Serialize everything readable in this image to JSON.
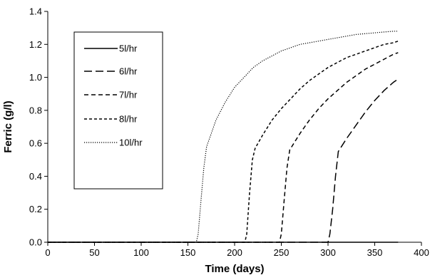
{
  "chart_data": {
    "type": "line",
    "title": "",
    "xlabel": "Time (days)",
    "ylabel": "Ferric (g/l)",
    "xlim": [
      0,
      400
    ],
    "ylim": [
      0,
      1.4
    ],
    "x_ticks": [
      "0",
      "50",
      "100",
      "150",
      "200",
      "250",
      "300",
      "350",
      "400"
    ],
    "y_ticks": [
      "0.0",
      "0.2",
      "0.4",
      "0.6",
      "0.8",
      "1.0",
      "1.2",
      "1.4"
    ],
    "grid": false,
    "legend_position": "top-left",
    "series": [
      {
        "name": "5l/hr",
        "style": "solid",
        "x": [
          0,
          100,
          200,
          300,
          375
        ],
        "y": [
          0,
          0,
          0,
          0,
          0
        ]
      },
      {
        "name": "6l/hr",
        "style": "long-dash",
        "x": [
          0,
          300,
          302,
          305,
          308,
          311,
          320,
          330,
          340,
          350,
          360,
          370,
          375
        ],
        "y": [
          0,
          0,
          0.05,
          0.2,
          0.4,
          0.55,
          0.63,
          0.71,
          0.79,
          0.86,
          0.92,
          0.97,
          0.99
        ]
      },
      {
        "name": "7l/hr",
        "style": "dash",
        "x": [
          0,
          248,
          250,
          253,
          256,
          259,
          270,
          280,
          290,
          300,
          310,
          320,
          330,
          340,
          350,
          360,
          370,
          375
        ],
        "y": [
          0,
          0,
          0.05,
          0.25,
          0.45,
          0.56,
          0.66,
          0.74,
          0.81,
          0.87,
          0.92,
          0.97,
          1.01,
          1.05,
          1.08,
          1.11,
          1.14,
          1.15
        ]
      },
      {
        "name": "8l/hr",
        "style": "short-dash",
        "x": [
          0,
          211,
          213,
          216,
          219,
          222,
          230,
          240,
          250,
          260,
          270,
          280,
          290,
          300,
          310,
          320,
          330,
          340,
          350,
          360,
          370,
          375
        ],
        "y": [
          0,
          0,
          0.05,
          0.3,
          0.5,
          0.57,
          0.65,
          0.74,
          0.81,
          0.87,
          0.93,
          0.98,
          1.02,
          1.06,
          1.09,
          1.12,
          1.14,
          1.16,
          1.18,
          1.2,
          1.21,
          1.22
        ]
      },
      {
        "name": "10l/hr",
        "style": "dotted",
        "x": [
          0,
          159,
          161,
          164,
          167,
          170,
          175,
          180,
          190,
          200,
          210,
          220,
          230,
          240,
          250,
          260,
          270,
          280,
          290,
          300,
          310,
          320,
          330,
          340,
          350,
          360,
          370,
          375
        ],
        "y": [
          0,
          0,
          0.05,
          0.25,
          0.45,
          0.58,
          0.66,
          0.74,
          0.85,
          0.94,
          1.0,
          1.06,
          1.1,
          1.13,
          1.16,
          1.18,
          1.2,
          1.21,
          1.22,
          1.23,
          1.24,
          1.25,
          1.26,
          1.265,
          1.27,
          1.275,
          1.28,
          1.28
        ]
      }
    ]
  }
}
